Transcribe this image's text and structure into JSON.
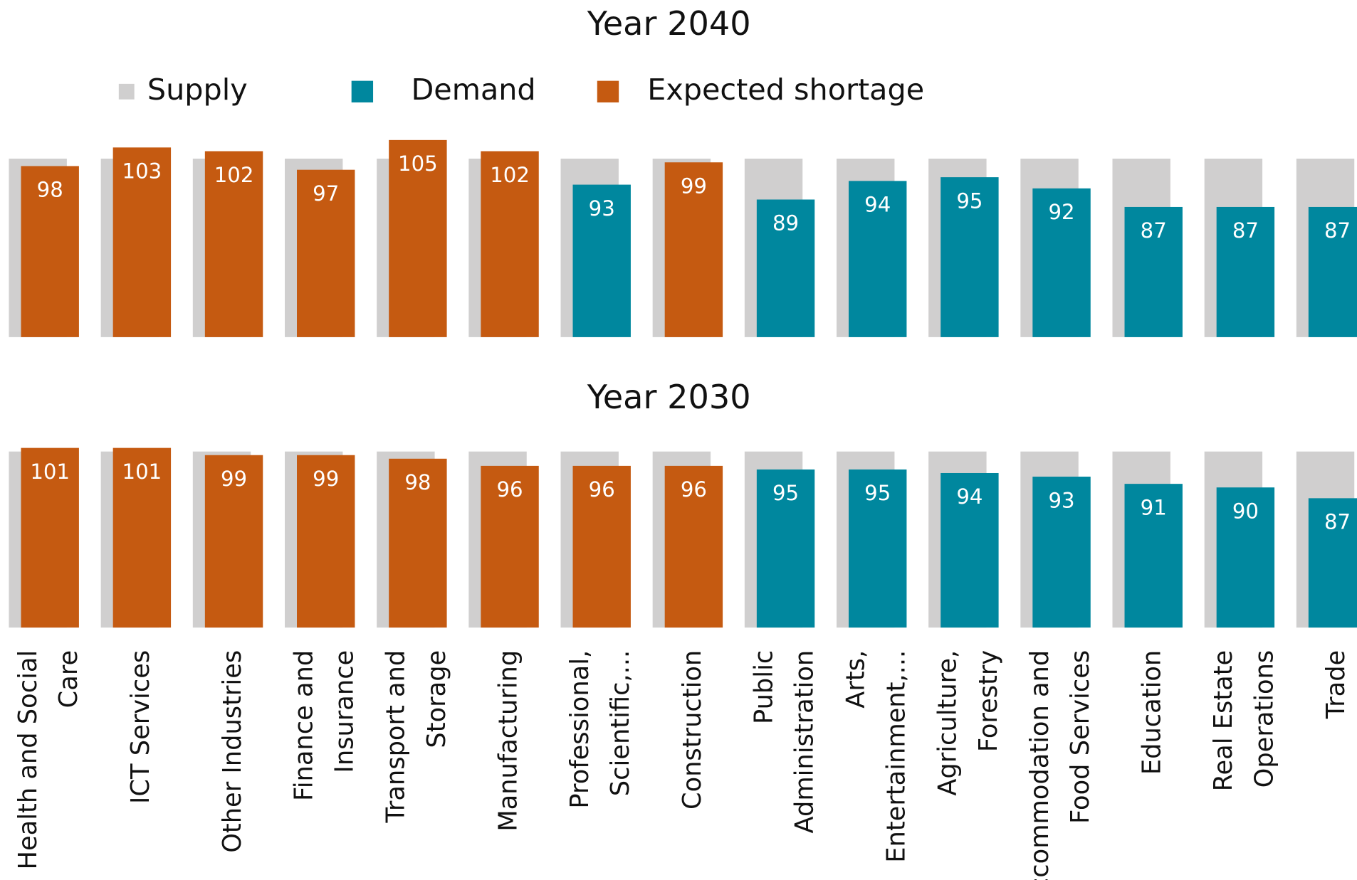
{
  "legend": [
    {
      "name": "Supply",
      "color": "#d0cfcf"
    },
    {
      "name": "Demand",
      "color": "#00879e"
    },
    {
      "name": "Expected shortage",
      "color": "#c55a11"
    }
  ],
  "chart_data": [
    {
      "type": "bar",
      "title": "Year 2040",
      "ylim": [
        52,
        106
      ],
      "series": [
        {
          "name": "Supply",
          "color": "#d0cfcf",
          "values": [
            100,
            100,
            100,
            100,
            100,
            100,
            100,
            100,
            100,
            100,
            100,
            100,
            100,
            100,
            100
          ]
        },
        {
          "name": "Demand",
          "color": "#00879e",
          "values": [
            98,
            103,
            102,
            97,
            105,
            102,
            93,
            99,
            89,
            94,
            95,
            92,
            87,
            87,
            87
          ],
          "colors": [
            "#c55a11",
            "#c55a11",
            "#c55a11",
            "#c55a11",
            "#c55a11",
            "#c55a11",
            "#00879e",
            "#c55a11",
            "#00879e",
            "#00879e",
            "#00879e",
            "#00879e",
            "#00879e",
            "#00879e",
            "#00879e"
          ]
        }
      ]
    },
    {
      "type": "bar",
      "title": "Year 2030",
      "ylim": [
        51,
        102
      ],
      "categories": [
        "Health and Social Care",
        "ICT Services",
        "Other Industries",
        "Finance and Insurance",
        "Transport and Storage",
        "Manufacturing",
        "Professional, Scientific,...",
        "Construction",
        "Public Administration",
        "Arts, Entertainment,...",
        "Agriculture, Forestry",
        "Accommodation and Food Services",
        "Education",
        "Real Estate Operations",
        "Trade"
      ],
      "series": [
        {
          "name": "Supply",
          "color": "#d0cfcf",
          "values": [
            100,
            100,
            100,
            100,
            100,
            100,
            100,
            100,
            100,
            100,
            100,
            100,
            100,
            100,
            100
          ]
        },
        {
          "name": "Demand",
          "color": "#00879e",
          "values": [
            101,
            101,
            99,
            99,
            98,
            96,
            96,
            96,
            95,
            95,
            94,
            93,
            91,
            90,
            87
          ],
          "colors": [
            "#c55a11",
            "#c55a11",
            "#c55a11",
            "#c55a11",
            "#c55a11",
            "#c55a11",
            "#c55a11",
            "#c55a11",
            "#00879e",
            "#00879e",
            "#00879e",
            "#00879e",
            "#00879e",
            "#00879e",
            "#00879e"
          ]
        }
      ]
    }
  ]
}
